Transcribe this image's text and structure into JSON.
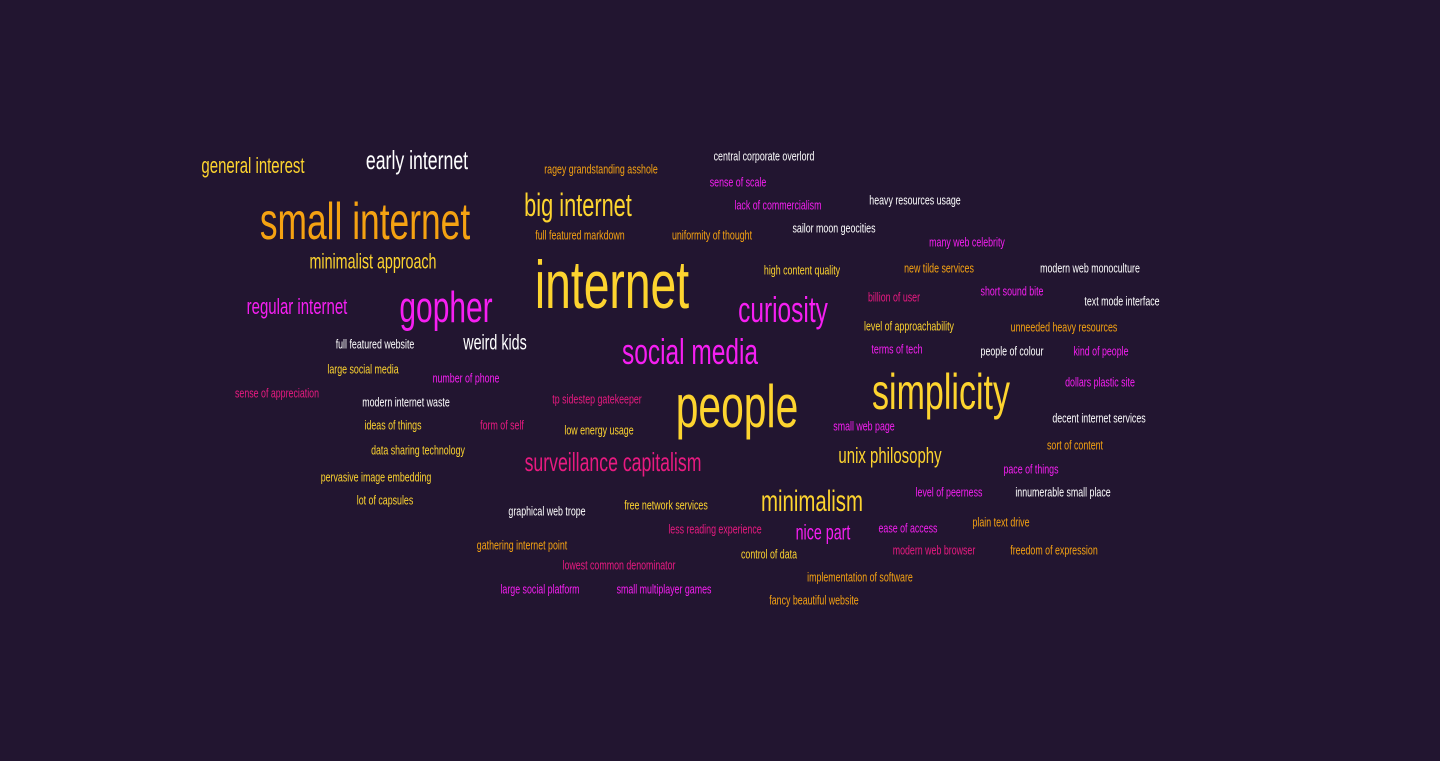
{
  "palette": {
    "background": "#221530",
    "white": "#ffffff",
    "yellow": "#fdd42f",
    "orange": "#f5a212",
    "magenta": "#f61ff2",
    "pink": "#e81a80"
  },
  "words": [
    {
      "text": "internet",
      "color": "yellow"
    },
    {
      "text": "people",
      "color": "yellow"
    },
    {
      "text": "small internet",
      "color": "orange"
    },
    {
      "text": "simplicity",
      "color": "yellow"
    },
    {
      "text": "gopher",
      "color": "magenta"
    },
    {
      "text": "social media",
      "color": "magenta"
    },
    {
      "text": "curiosity",
      "color": "magenta"
    },
    {
      "text": "big internet",
      "color": "yellow"
    },
    {
      "text": "minimalism",
      "color": "yellow"
    },
    {
      "text": "surveillance capitalism",
      "color": "pink"
    },
    {
      "text": "early internet",
      "color": "white"
    },
    {
      "text": "general interest",
      "color": "yellow"
    },
    {
      "text": "regular internet",
      "color": "magenta"
    },
    {
      "text": "unix philosophy",
      "color": "yellow"
    },
    {
      "text": "minimalist approach",
      "color": "yellow"
    },
    {
      "text": "weird kids",
      "color": "white"
    },
    {
      "text": "nice part",
      "color": "magenta"
    },
    {
      "text": "central corporate overlord",
      "color": "white"
    },
    {
      "text": "ragey grandstanding asshole",
      "color": "orange"
    },
    {
      "text": "sense of scale",
      "color": "magenta"
    },
    {
      "text": "heavy resources usage",
      "color": "white"
    },
    {
      "text": "lack of commercialism",
      "color": "magenta"
    },
    {
      "text": "full featured markdown",
      "color": "orange"
    },
    {
      "text": "uniformity of thought",
      "color": "orange"
    },
    {
      "text": "sailor moon geocities",
      "color": "white"
    },
    {
      "text": "many web celebrity",
      "color": "magenta"
    },
    {
      "text": "high content quality",
      "color": "yellow"
    },
    {
      "text": "new tilde services",
      "color": "orange"
    },
    {
      "text": "modern web monoculture",
      "color": "white"
    },
    {
      "text": "billion of user",
      "color": "pink"
    },
    {
      "text": "short sound bite",
      "color": "magenta"
    },
    {
      "text": "text mode interface",
      "color": "white"
    },
    {
      "text": "level of approachability",
      "color": "yellow"
    },
    {
      "text": "unneeded heavy resources",
      "color": "orange"
    },
    {
      "text": "full featured website",
      "color": "white"
    },
    {
      "text": "terms of tech",
      "color": "magenta"
    },
    {
      "text": "people of colour",
      "color": "white"
    },
    {
      "text": "kind of people",
      "color": "magenta"
    },
    {
      "text": "large social media",
      "color": "yellow"
    },
    {
      "text": "number of phone",
      "color": "magenta"
    },
    {
      "text": "dollars plastic site",
      "color": "magenta"
    },
    {
      "text": "sense of appreciation",
      "color": "pink"
    },
    {
      "text": "modern internet waste",
      "color": "white"
    },
    {
      "text": "tp sidestep gatekeeper",
      "color": "pink"
    },
    {
      "text": "decent internet services",
      "color": "white"
    },
    {
      "text": "ideas of things",
      "color": "yellow"
    },
    {
      "text": "form of self",
      "color": "pink"
    },
    {
      "text": "low energy usage",
      "color": "yellow"
    },
    {
      "text": "small web page",
      "color": "magenta"
    },
    {
      "text": "sort of content",
      "color": "orange"
    },
    {
      "text": "data sharing technology",
      "color": "yellow"
    },
    {
      "text": "pace of things",
      "color": "magenta"
    },
    {
      "text": "pervasive image embedding",
      "color": "yellow"
    },
    {
      "text": "level of peerness",
      "color": "magenta"
    },
    {
      "text": "innumerable small place",
      "color": "white"
    },
    {
      "text": "lot of capsules",
      "color": "yellow"
    },
    {
      "text": "graphical web trope",
      "color": "white"
    },
    {
      "text": "free network services",
      "color": "yellow"
    },
    {
      "text": "less reading experience",
      "color": "pink"
    },
    {
      "text": "ease of access",
      "color": "magenta"
    },
    {
      "text": "plain text drive",
      "color": "orange"
    },
    {
      "text": "gathering internet point",
      "color": "orange"
    },
    {
      "text": "control of data",
      "color": "yellow"
    },
    {
      "text": "modern web browser",
      "color": "pink"
    },
    {
      "text": "freedom of expression",
      "color": "orange"
    },
    {
      "text": "lowest common denominator",
      "color": "pink"
    },
    {
      "text": "implementation of software",
      "color": "orange"
    },
    {
      "text": "large social platform",
      "color": "magenta"
    },
    {
      "text": "small multiplayer games",
      "color": "magenta"
    },
    {
      "text": "fancy beautiful website",
      "color": "orange"
    }
  ]
}
